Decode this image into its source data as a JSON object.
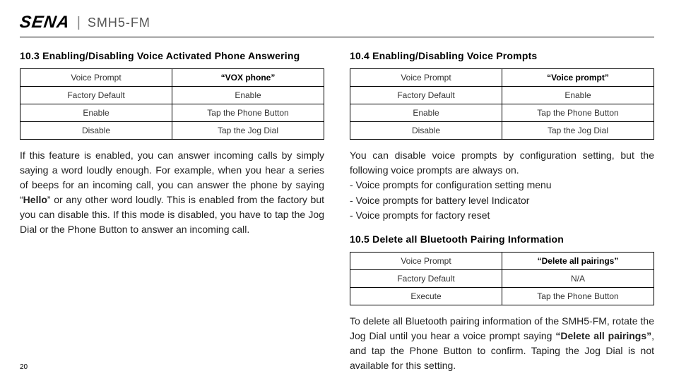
{
  "header": {
    "logo": "SENA",
    "model": "SMH5-FM"
  },
  "left": {
    "sec1": {
      "title": "10.3  Enabling/Disabling Voice Activated Phone Answering",
      "table": {
        "r0c0": "Voice Prompt",
        "r0c1": "“VOX phone”",
        "r1c0": "Factory Default",
        "r1c1": "Enable",
        "r2c0": "Enable",
        "r2c1": "Tap the Phone Button",
        "r3c0": "Disable",
        "r3c1": "Tap the Jog Dial"
      },
      "p_pre": "If this feature is enabled, you can answer incoming calls by simply saying a word loudly enough. For example, when you hear a series of beeps for an incoming call, you can answer the phone by saying “",
      "p_bold": "Hello",
      "p_post": "” or any other word loudly. This is enabled from the factory but you can disable this. If this mode is disabled, you have to tap the Jog Dial or the Phone Button to answer an incoming call."
    }
  },
  "right": {
    "sec1": {
      "title": "10.4  Enabling/Disabling Voice Prompts",
      "table": {
        "r0c0": "Voice Prompt",
        "r0c1": "“Voice prompt”",
        "r1c0": "Factory Default",
        "r1c1": "Enable",
        "r2c0": "Enable",
        "r2c1": "Tap the Phone Button",
        "r3c0": "Disable",
        "r3c1": "Tap the Jog Dial"
      },
      "p1": "You can disable voice prompts by configuration setting, but the following voice prompts are always on.",
      "l1": "-  Voice prompts for configuration setting menu",
      "l2": "-  Voice prompts for battery level Indicator",
      "l3": "-  Voice prompts for factory reset"
    },
    "sec2": {
      "title": "10.5  Delete all Bluetooth Pairing Information",
      "table": {
        "r0c0": "Voice Prompt",
        "r0c1": "“Delete all pairings”",
        "r1c0": "Factory Default",
        "r1c1": "N/A",
        "r2c0": "Execute",
        "r2c1": "Tap the Phone Button"
      },
      "p_pre": "To delete all Bluetooth pairing information of the SMH5-FM, rotate the Jog Dial until you hear a voice prompt saying ",
      "p_bold": "“Delete all pairings”",
      "p_post": ", and tap the Phone Button to confirm. Taping the Jog Dial is not available for this setting."
    }
  },
  "page": "20"
}
